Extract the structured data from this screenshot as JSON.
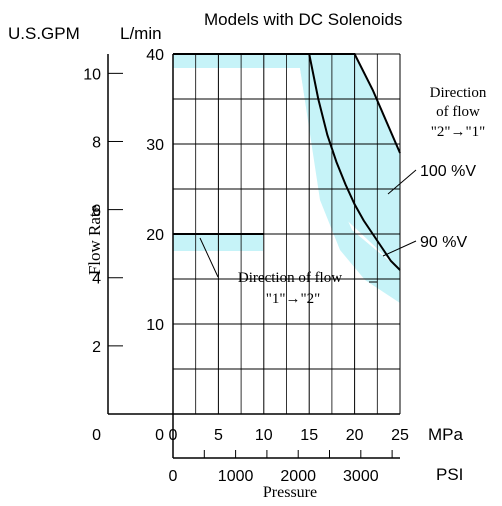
{
  "chart_data": {
    "type": "line",
    "title": "Models with DC Solenoids",
    "left_axis_unit": "U.S.GPM",
    "inner_axis_unit": "L/min",
    "ylabel": "Flow Rate",
    "xlabel": "Pressure",
    "x_unit_mpa": "MPa",
    "x_unit_psi": "PSI",
    "x_mpa_ticks": [
      "0",
      "5",
      "10",
      "15",
      "20",
      "25"
    ],
    "x_psi_ticks": [
      "0",
      "1000",
      "2000",
      "3000"
    ],
    "y_lmin_ticks": [
      "0",
      "10",
      "20",
      "30",
      "40"
    ],
    "y_gpm_ticks": [
      "0",
      "2",
      "4",
      "6",
      "8",
      "10"
    ],
    "xlim_mpa": [
      0,
      25
    ],
    "ylim_lmin": [
      0,
      40
    ],
    "grid": true,
    "series": [
      {
        "name": "100 %V",
        "x": [
          0,
          15,
          20,
          22,
          25
        ],
        "y": [
          40,
          40,
          40,
          36,
          29
        ]
      },
      {
        "name": "90 %V",
        "x": [
          15,
          16,
          17,
          18,
          19,
          20,
          21,
          22,
          23,
          24,
          25
        ],
        "y": [
          40,
          35,
          31,
          28,
          25.5,
          23.3,
          21.5,
          20,
          18.5,
          17,
          16
        ]
      },
      {
        "x": [
          0,
          10
        ],
        "y": [
          20,
          20
        ]
      }
    ],
    "annotations": {
      "flow_2_1_line1": "Direction",
      "flow_2_1_line2": "of flow",
      "flow_2_1_line3": "\"2\"→\"1\"",
      "flow_1_2_line1": "Direction of flow",
      "flow_1_2_line2": "\"1\"→\"2\""
    }
  }
}
